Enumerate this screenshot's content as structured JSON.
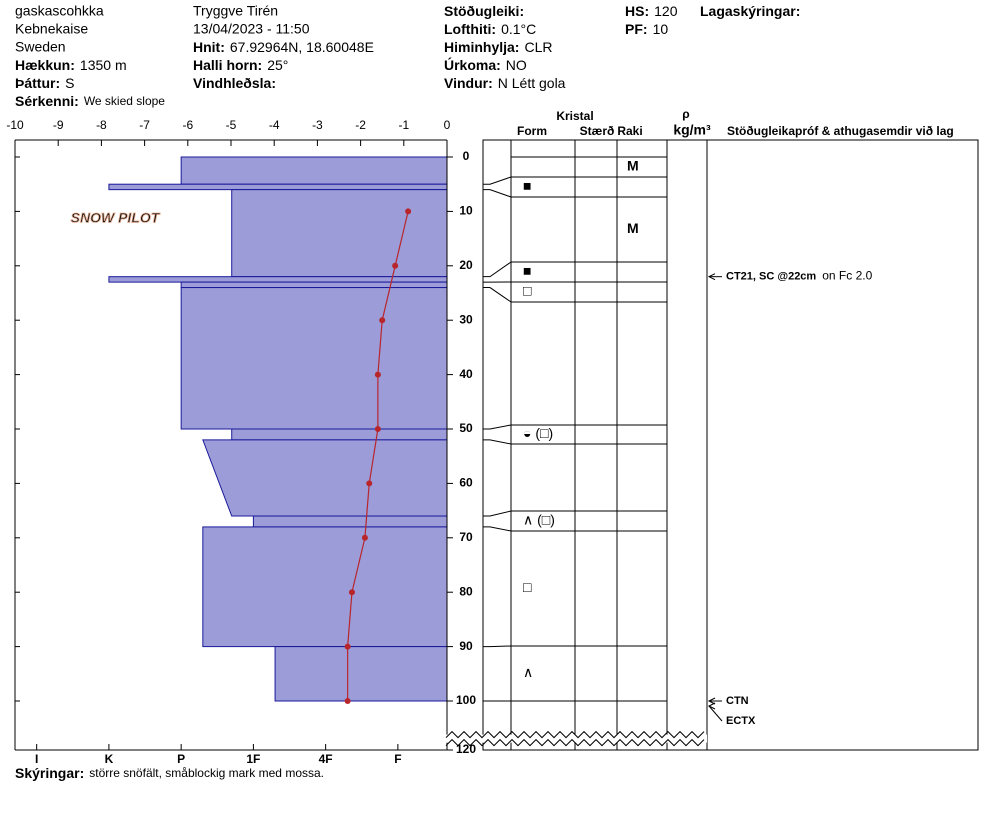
{
  "header": {
    "site": "gaskascohkka",
    "region": "Kebnekaise",
    "country": "Sweden",
    "elevation": {
      "label": "Hækkun:",
      "value": "1350 m"
    },
    "aspect": {
      "label": "Þáttur:",
      "value": "S"
    },
    "features": {
      "label": "Sérkenni:",
      "value": "We skied slope"
    },
    "observer": "Tryggve Tirén",
    "datetime": "13/04/2023 - 11:50",
    "coords": {
      "label": "Hnit:",
      "value": "67.92964N, 18.60048E"
    },
    "incline": {
      "label": "Halli horn:",
      "value": "25°"
    },
    "wind_loading": {
      "label": "Vindhleðsla:"
    },
    "stability": {
      "label": "Stöðugleiki:"
    },
    "air_temp": {
      "label": "Lofthiti:",
      "value": "0.1°C"
    },
    "sky": {
      "label": "Himinhylja:",
      "value": "CLR"
    },
    "precip": {
      "label": "Úrkoma:",
      "value": "NO"
    },
    "wind": {
      "label": "Vindur:",
      "value": "N Létt gola"
    },
    "hs": {
      "label": "HS:",
      "value": "120"
    },
    "pf": {
      "label": "PF:",
      "value": "10"
    },
    "layer_notes": {
      "label": "Lagaskýringar:"
    },
    "remarks": {
      "label": "Skýringar:",
      "value": "större snöfält, småblockig mark med mossa."
    }
  },
  "logo": "SNOW PILOT",
  "chart_data": {
    "type": "profile",
    "xlim": [
      -10,
      0
    ],
    "xticks": [
      -10,
      -9,
      -8,
      -7,
      -6,
      -5,
      -4,
      -3,
      -2,
      -1,
      0
    ],
    "ylim": [
      0,
      120
    ],
    "yticks": [
      0,
      10,
      20,
      30,
      40,
      50,
      60,
      70,
      80,
      90,
      100,
      120
    ],
    "axis_break": [
      106,
      118
    ],
    "hardness_lim": [
      6.3,
      0.32
    ],
    "hardness_ticks": [
      {
        "value": 6,
        "label": "I"
      },
      {
        "value": 5,
        "label": "K"
      },
      {
        "value": 4,
        "label": "P"
      },
      {
        "value": 3,
        "label": "1F"
      },
      {
        "value": 2,
        "label": "4F"
      },
      {
        "value": 1,
        "label": "F"
      }
    ],
    "bar_color": "#9c9cd8",
    "layers": [
      {
        "top": 0,
        "bottom": 5,
        "hardness": 4,
        "moisture": "M"
      },
      {
        "top": 5,
        "bottom": 6,
        "hardness": 5,
        "form": "■"
      },
      {
        "top": 6,
        "bottom": 22,
        "hardness": 3.3,
        "moisture": "M"
      },
      {
        "top": 22,
        "bottom": 23,
        "hardness": 5,
        "form": "■"
      },
      {
        "top": 23,
        "bottom": 24,
        "hardness": 4,
        "form": "□"
      },
      {
        "top": 24,
        "bottom": 50,
        "hardness": 4
      },
      {
        "top": 50,
        "bottom": 52,
        "hardness": 3.3,
        "form": "◒ (□)"
      },
      {
        "top": 52,
        "bottom": 66,
        "hardness": 3.7,
        "hardness_bottom": 3.3
      },
      {
        "top": 66,
        "bottom": 68,
        "hardness": 3,
        "form": "∧ (□)"
      },
      {
        "top": 68,
        "bottom": 90,
        "hardness": 3.7,
        "form": "□"
      },
      {
        "top": 90,
        "bottom": 100,
        "hardness": 2.7,
        "form": "∧"
      }
    ],
    "temperature": {
      "color": "#b8262c",
      "depths": [
        10,
        20,
        30,
        40,
        50,
        60,
        70,
        80,
        90,
        100
      ],
      "values": [
        -0.9,
        -1.2,
        -1.5,
        -1.6,
        -1.6,
        -1.8,
        -1.9,
        -2.2,
        -2.3,
        -2.3
      ]
    },
    "column_headers": {
      "crystal": "Kristal",
      "form": "Form",
      "size": "Stærð",
      "moisture": "Raki",
      "density": "ρ",
      "density_unit": "kg/m³",
      "tests": "Stöðugleikapróf & athugasemdir við lag"
    },
    "tests": [
      {
        "depth": 22,
        "label": "CT21, SC @22cm",
        "note": "on Fc 2.0"
      },
      {
        "depth": 100,
        "label": "CTN"
      },
      {
        "depth": 100,
        "label": "ECTX"
      }
    ]
  }
}
